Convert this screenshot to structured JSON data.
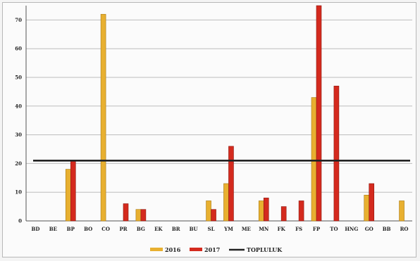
{
  "chart_data": {
    "type": "bar",
    "categories": [
      "BD",
      "BE",
      "BP",
      "BO",
      "CO",
      "PR",
      "BG",
      "EK",
      "BR",
      "BU",
      "SL",
      "YM",
      "ME",
      "MN",
      "FK",
      "FS",
      "FP",
      "TO",
      "HNG",
      "GO",
      "BB",
      "RO"
    ],
    "series": [
      {
        "name": "2016",
        "color": "#e8b030",
        "values": [
          0,
          0,
          18,
          0,
          72,
          0,
          4,
          0,
          0,
          0,
          7,
          13,
          0,
          7,
          0,
          0,
          43,
          0,
          0,
          9,
          0,
          7
        ]
      },
      {
        "name": "2017",
        "color": "#d42a1e",
        "values": [
          0,
          0,
          21,
          0,
          0,
          6,
          4,
          0,
          0,
          0,
          4,
          26,
          0,
          8,
          5,
          7,
          75,
          47,
          0,
          13,
          0,
          0
        ]
      }
    ],
    "reference_line": {
      "name": "TOPLULUK",
      "value": 21,
      "color": "#222222"
    },
    "ylim": [
      0,
      75
    ],
    "yticks": [
      "0",
      "10",
      "20",
      "30",
      "40",
      "50",
      "60",
      "70"
    ],
    "title": "",
    "xlabel": "",
    "ylabel": "",
    "grid": true,
    "legend_position": "bottom"
  }
}
